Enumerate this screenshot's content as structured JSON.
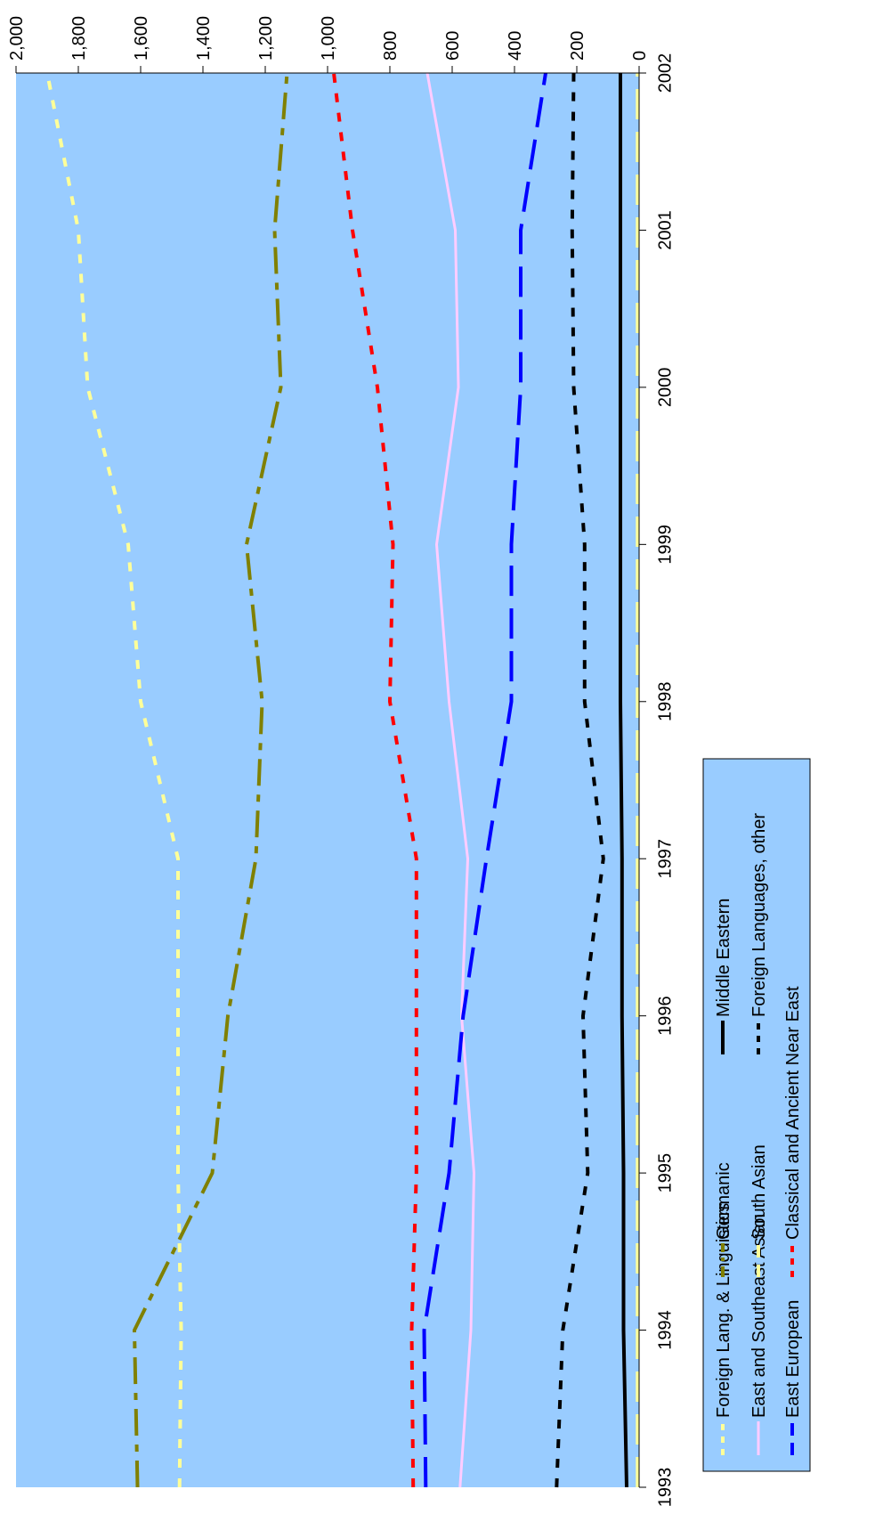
{
  "chart_data": {
    "type": "line",
    "orientation": "rotated-90-clockwise",
    "x": [
      "1993",
      "1994",
      "1995",
      "1996",
      "1997",
      "1998",
      "1999",
      "2000",
      "2001",
      "2002"
    ],
    "ylim": [
      0,
      2000
    ],
    "yticks": [
      "0",
      "200",
      "400",
      "600",
      "800",
      "1,000",
      "1,200",
      "1,400",
      "1,600",
      "1,800",
      "2,000"
    ],
    "grid": false,
    "plot_background": "#99ccff",
    "legend_position": "right",
    "series": [
      {
        "name": "Foreign Lang. & Linguistics",
        "color": "#ffff99",
        "dash": "dotted",
        "width": 4,
        "values": [
          1475,
          1470,
          1480,
          1480,
          1480,
          1600,
          1640,
          1770,
          1800,
          1900
        ]
      },
      {
        "name": "East and Southeast Asian",
        "color": "#ffccff",
        "dash": "solid",
        "width": 3,
        "values": [
          575,
          540,
          530,
          570,
          550,
          610,
          650,
          580,
          590,
          680
        ]
      },
      {
        "name": "East European",
        "color": "#0000ff",
        "dash": "long-dash",
        "width": 4,
        "values": [
          685,
          690,
          610,
          565,
          490,
          410,
          410,
          380,
          380,
          300
        ]
      },
      {
        "name": "Germanic",
        "color": "#808000",
        "dash": "dash-dot",
        "width": 4,
        "values": [
          1610,
          1620,
          1370,
          1320,
          1230,
          1210,
          1260,
          1150,
          1170,
          1130
        ]
      },
      {
        "name": "South Asian",
        "color": "#ffff99",
        "dash": "long-dash",
        "width": 4,
        "values": [
          5,
          5,
          5,
          5,
          5,
          5,
          5,
          5,
          5,
          5
        ]
      },
      {
        "name": "Classical and Ancient Near East",
        "color": "#ff0000",
        "dash": "dotted",
        "width": 4,
        "values": [
          725,
          730,
          715,
          715,
          715,
          800,
          790,
          840,
          920,
          980
        ]
      },
      {
        "name": "Middle Eastern",
        "color": "#000000",
        "dash": "solid",
        "width": 4,
        "values": [
          40,
          50,
          50,
          55,
          55,
          60,
          60,
          60,
          60,
          60
        ]
      },
      {
        "name": "Foreign Languages, other",
        "color": "#000000",
        "dash": "dotted",
        "width": 4,
        "values": [
          265,
          245,
          165,
          180,
          115,
          175,
          175,
          210,
          215,
          210
        ]
      }
    ]
  }
}
